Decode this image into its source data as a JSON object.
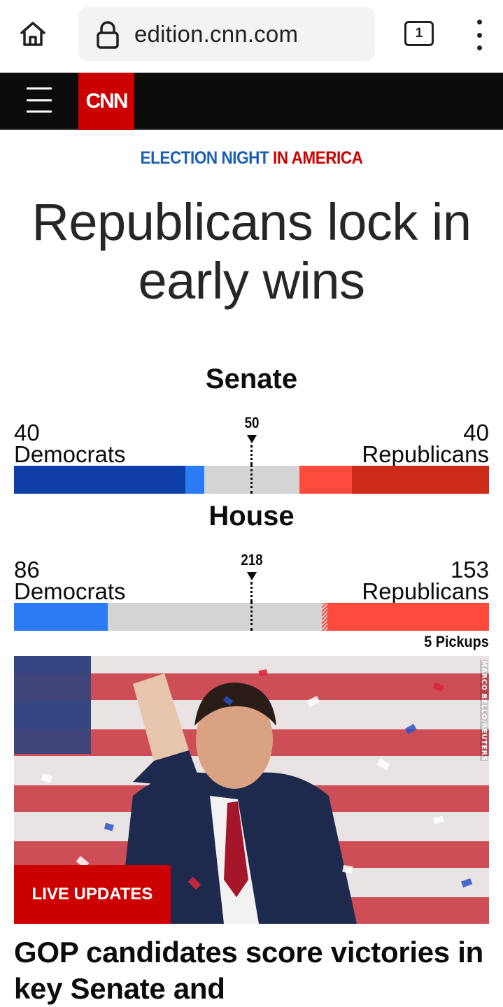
{
  "browser": {
    "url": "edition.cnn.com",
    "tab_count": "1",
    "icons": [
      "home-icon",
      "lock-icon",
      "tabs-icon",
      "more-vert-icon"
    ]
  },
  "nav": {
    "logo_text": "CNN",
    "icons": [
      "hamburger-menu-icon"
    ],
    "colors": {
      "logo_bg": "#cc0000",
      "nav_bg": "#0c0c0c"
    }
  },
  "kicker": {
    "part1": "ELECTION NIGHT",
    "part2": "IN AMERICA"
  },
  "headline": "Republicans lock in early wins",
  "senate": {
    "title": "Senate",
    "majority": "50",
    "dem_count": "40",
    "dem_label": "Democrats",
    "rep_count": "40",
    "rep_label": "Republicans"
  },
  "house": {
    "title": "House",
    "majority": "218",
    "dem_count": "86",
    "dem_label": "Democrats",
    "rep_count": "153",
    "rep_label": "Republicans",
    "pickups": "5 Pickups"
  },
  "colors": {
    "dem_dark": "#0d3fa6",
    "dem_light": "#2b7bf6",
    "rep_dark": "#cc2b19",
    "rep_light": "#ff4b3d",
    "undecided": "#d4d4d4"
  },
  "story": {
    "photo_credit": "MARCO BELLO/REUTERS",
    "badge": "LIVE UPDATES",
    "title": "GOP candidates score victories in key Senate and"
  }
}
